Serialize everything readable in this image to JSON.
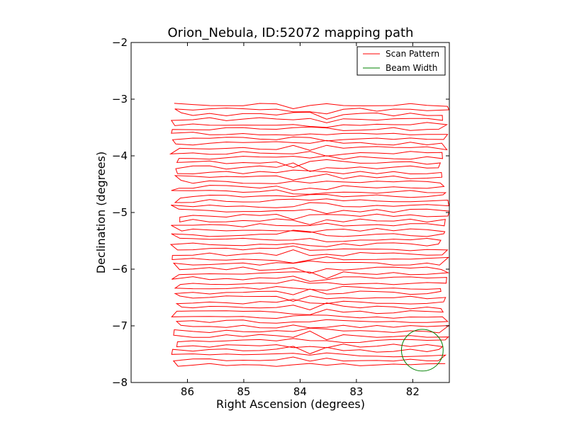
{
  "chart_data": {
    "type": "line",
    "title": "Orion_Nebula, ID:52072 mapping path",
    "xlabel": "Right Ascension (degrees)",
    "ylabel": "Declination (degrees)",
    "xlim": [
      87.0,
      81.35
    ],
    "ylim": [
      -8.0,
      -2.0
    ],
    "x_ticks": [
      86,
      85,
      84,
      83,
      82
    ],
    "y_ticks": [
      -2,
      -3,
      -4,
      -5,
      -6,
      -7,
      -8
    ],
    "x_tick_labels": [
      "86",
      "85",
      "84",
      "83",
      "82"
    ],
    "y_tick_labels": [
      "−2",
      "−3",
      "−4",
      "−5",
      "−6",
      "−7",
      "−8"
    ],
    "grid": false,
    "legend_position": "top-right",
    "series": [
      {
        "name": "Scan Pattern",
        "color": "#ff0000",
        "style": "line",
        "scan": {
          "ra_start": 86.2,
          "ra_end": 81.45,
          "dec_start": -3.1,
          "dec_end": -7.75,
          "row_spacing": 0.085
        },
        "x": [
          86.2,
          81.45
        ],
        "y": [
          -3.1,
          -7.75
        ]
      },
      {
        "name": "Beam Width",
        "color": "#008000",
        "style": "circle",
        "center": [
          81.83,
          -7.43
        ],
        "radius": 0.37
      }
    ]
  }
}
